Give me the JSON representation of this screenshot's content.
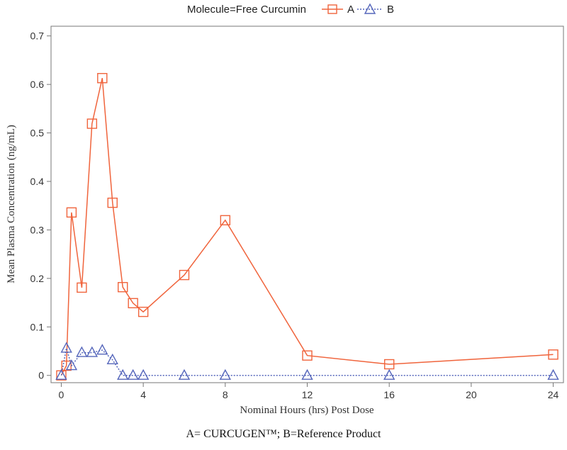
{
  "chart_data": {
    "type": "line",
    "legend": {
      "title": "Molecule=Free Curcumin",
      "position": "top-center"
    },
    "xlabel": "Nominal Hours (hrs) Post Dose",
    "ylabel": "Mean Plasma Concentration (ng/mL)",
    "xlim": [
      -0.5,
      24.5
    ],
    "ylim": [
      -0.015,
      0.72
    ],
    "xticks": [
      0,
      4,
      8,
      12,
      16,
      20,
      24
    ],
    "yticks": [
      0,
      0.1,
      0.2,
      0.3,
      0.4,
      0.5,
      0.6,
      0.7
    ],
    "ytick_labels": [
      "0",
      "0.1",
      "0.2",
      "0.3",
      "0.4",
      "0.5",
      "0.6",
      "0.7"
    ],
    "grid": false,
    "series": [
      {
        "name": "A",
        "color": "#f0643c",
        "marker": "square",
        "line": "solid",
        "x": [
          0,
          0.25,
          0.5,
          1,
          1.5,
          2,
          2.5,
          3,
          3.5,
          4,
          6,
          8,
          12,
          16,
          24
        ],
        "y": [
          0,
          0.02,
          0.336,
          0.181,
          0.519,
          0.613,
          0.356,
          0.182,
          0.149,
          0.131,
          0.207,
          0.32,
          0.041,
          0.023,
          0.043
        ]
      },
      {
        "name": "B",
        "color": "#5566bb",
        "marker": "triangle",
        "line": "dotted",
        "x": [
          0,
          0.25,
          0.5,
          1,
          1.5,
          2,
          2.5,
          3,
          3.5,
          4,
          6,
          8,
          12,
          16,
          24
        ],
        "y": [
          0,
          0.056,
          0.02,
          0.047,
          0.047,
          0.052,
          0.032,
          0,
          0,
          0,
          0,
          0,
          0,
          0,
          0
        ]
      }
    ],
    "caption": "A= CURCUGEN™; B=Reference Product"
  }
}
